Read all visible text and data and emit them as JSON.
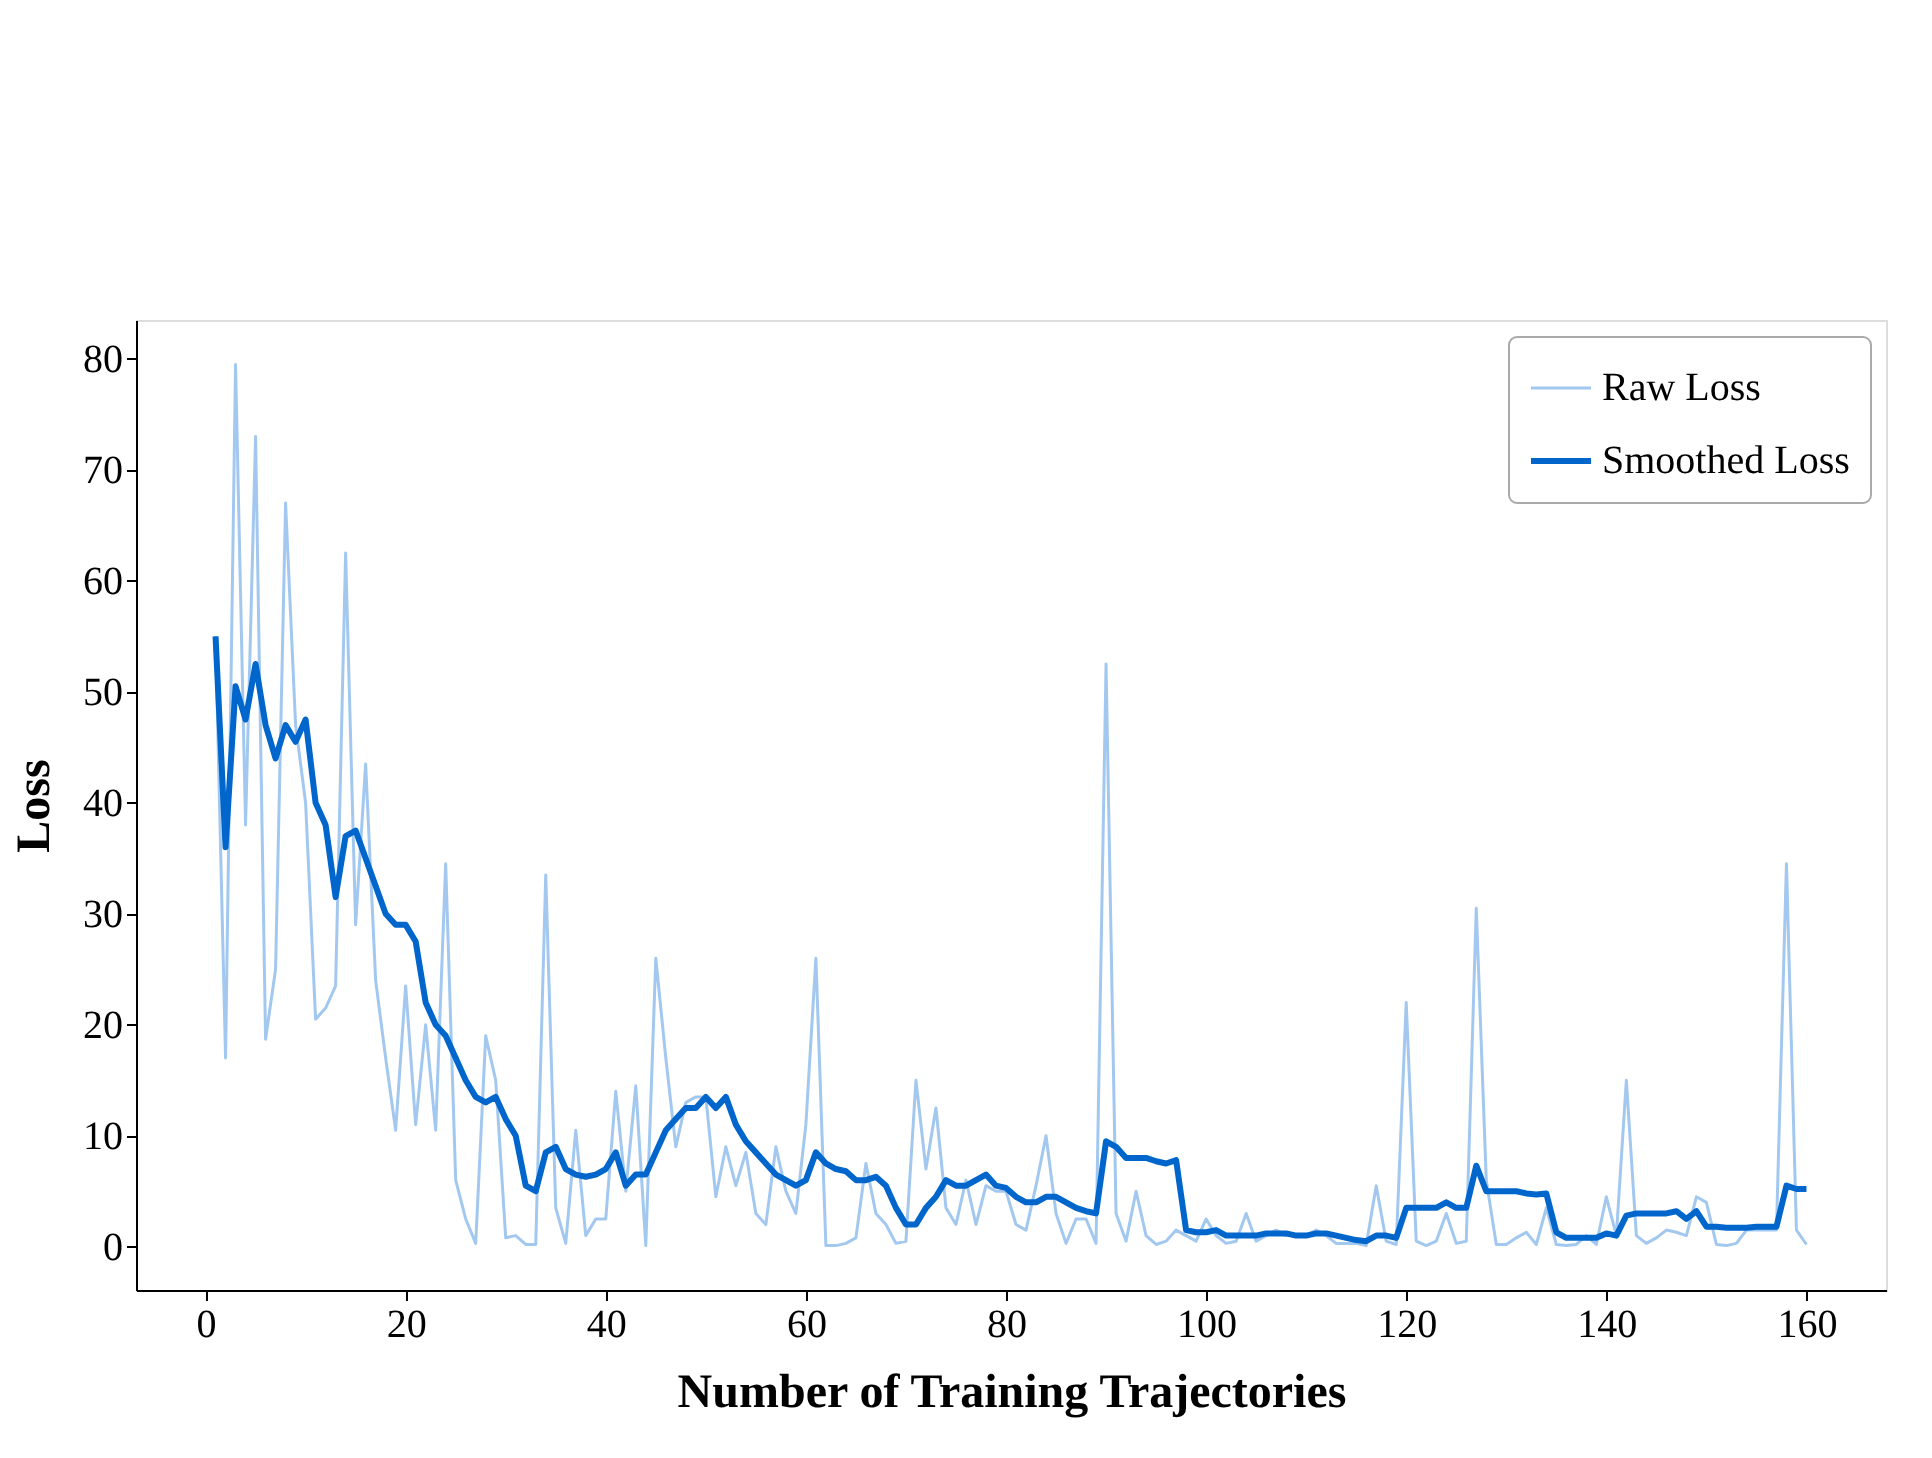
{
  "chart_data": {
    "type": "line",
    "xlabel": "Number of Training Trajectories",
    "ylabel": "Loss",
    "x": [
      1,
      2,
      3,
      4,
      5,
      6,
      7,
      8,
      9,
      10,
      11,
      12,
      13,
      14,
      15,
      16,
      17,
      18,
      19,
      20,
      21,
      22,
      23,
      24,
      25,
      26,
      27,
      28,
      29,
      30,
      31,
      32,
      33,
      34,
      35,
      36,
      37,
      38,
      39,
      40,
      41,
      42,
      43,
      44,
      45,
      46,
      47,
      48,
      49,
      50,
      51,
      52,
      53,
      54,
      55,
      56,
      57,
      58,
      59,
      60,
      61,
      62,
      63,
      64,
      65,
      66,
      67,
      68,
      69,
      70,
      71,
      72,
      73,
      74,
      75,
      76,
      77,
      78,
      79,
      80,
      81,
      82,
      83,
      84,
      85,
      86,
      87,
      88,
      89,
      90,
      91,
      92,
      93,
      94,
      95,
      96,
      97,
      98,
      99,
      100,
      101,
      102,
      103,
      104,
      105,
      106,
      107,
      108,
      109,
      110,
      111,
      112,
      113,
      114,
      115,
      116,
      117,
      118,
      119,
      120,
      121,
      122,
      123,
      124,
      125,
      126,
      127,
      128,
      129,
      130,
      131,
      132,
      133,
      134,
      135,
      136,
      137,
      138,
      139,
      140,
      141,
      142,
      143,
      144,
      145,
      146,
      147,
      148,
      149,
      150,
      151,
      152,
      153,
      154,
      155,
      156,
      157,
      158,
      159,
      160
    ],
    "series": [
      {
        "name": "Raw Loss",
        "color": "#a3c8f0",
        "values": [
          55,
          17,
          79.5,
          38,
          73,
          18.7,
          25,
          67,
          47,
          40,
          20.5,
          21.5,
          23.5,
          62.5,
          29,
          43.5,
          24,
          17,
          10.5,
          23.5,
          11,
          20,
          10.5,
          34.5,
          6,
          2.5,
          0.3,
          19,
          15,
          0.8,
          1,
          0.2,
          0.2,
          33.5,
          3.5,
          0.3,
          10.5,
          1,
          2.5,
          2.5,
          14,
          5,
          14.5,
          0.1,
          26,
          17,
          9,
          13,
          13.5,
          13.5,
          4.5,
          9,
          5.5,
          8.5,
          3,
          2,
          9,
          5,
          3,
          11,
          26,
          0.1,
          0.1,
          0.3,
          0.8,
          7.5,
          3,
          2,
          0.3,
          0.5,
          15,
          7,
          12.5,
          3.5,
          2,
          6,
          2,
          5.5,
          5,
          5,
          2,
          1.5,
          5.5,
          10,
          3,
          0.3,
          2.5,
          2.5,
          0.3,
          52.5,
          3,
          0.5,
          5,
          1,
          0.2,
          0.5,
          1.5,
          1,
          0.5,
          2.5,
          1,
          0.3,
          0.5,
          3,
          0.5,
          1,
          1.5,
          1,
          1,
          1,
          1.5,
          1,
          0.3,
          0.3,
          0.3,
          0.1,
          5.5,
          0.5,
          0.2,
          22,
          0.5,
          0.1,
          0.5,
          3,
          0.3,
          0.5,
          30.5,
          6,
          0.2,
          0.2,
          0.8,
          1.3,
          0.2,
          3.5,
          0.2,
          0.1,
          0.2,
          1,
          0.2,
          4.5,
          1,
          15,
          1,
          0.3,
          0.8,
          1.5,
          1.3,
          1,
          4.5,
          4,
          0.2,
          0.1,
          0.3,
          1.5,
          1.5,
          1.5,
          1.5,
          34.5,
          1.5,
          0.2
        ]
      },
      {
        "name": "Smoothed Loss",
        "color": "#0066cc",
        "values": [
          55,
          36,
          50.5,
          47.5,
          52.5,
          47,
          44,
          47,
          45.5,
          47.5,
          40,
          38,
          31.5,
          37,
          37.5,
          35,
          32.5,
          30,
          29,
          29,
          27.5,
          22,
          20,
          19,
          17,
          15,
          13.5,
          13,
          13.5,
          11.5,
          10,
          5.5,
          5,
          8.5,
          9,
          7,
          6.5,
          6.3,
          6.5,
          7,
          8.5,
          5.5,
          6.5,
          6.5,
          8.5,
          10.5,
          11.5,
          12.5,
          12.5,
          13.5,
          12.5,
          13.5,
          11,
          9.5,
          8.5,
          7.5,
          6.5,
          6,
          5.5,
          6,
          8.5,
          7.5,
          7,
          6.8,
          6,
          6,
          6.3,
          5.5,
          3.5,
          2,
          2,
          3.5,
          4.5,
          6,
          5.5,
          5.5,
          6,
          6.5,
          5.5,
          5.3,
          4.5,
          4,
          4,
          4.5,
          4.5,
          4,
          3.5,
          3.2,
          3,
          9.5,
          9,
          8,
          8,
          8,
          7.7,
          7.5,
          7.8,
          1.5,
          1.3,
          1.3,
          1.5,
          1,
          1,
          1,
          1,
          1.2,
          1.2,
          1.2,
          1,
          1,
          1.2,
          1.2,
          1,
          0.8,
          0.6,
          0.5,
          1,
          1,
          0.8,
          3.5,
          3.5,
          3.5,
          3.5,
          4,
          3.5,
          3.5,
          7.3,
          5,
          5,
          5,
          5,
          4.8,
          4.7,
          4.8,
          1.3,
          0.8,
          0.8,
          0.8,
          0.8,
          1.2,
          1,
          2.8,
          3,
          3,
          3,
          3,
          3.2,
          2.5,
          3.2,
          1.8,
          1.8,
          1.7,
          1.7,
          1.7,
          1.8,
          1.8,
          1.8,
          5.5,
          5.2,
          5.2
        ]
      }
    ],
    "xlim": [
      -6.95,
      167.95
    ],
    "xticks": [
      0,
      20,
      40,
      60,
      80,
      100,
      120,
      140,
      160
    ],
    "ylim": [
      -3.9,
      83.5
    ],
    "yticks": [
      0,
      10,
      20,
      30,
      40,
      50,
      60,
      70,
      80
    ],
    "legend": "top right",
    "grid": false,
    "marker": "none",
    "line_style": "solid"
  }
}
